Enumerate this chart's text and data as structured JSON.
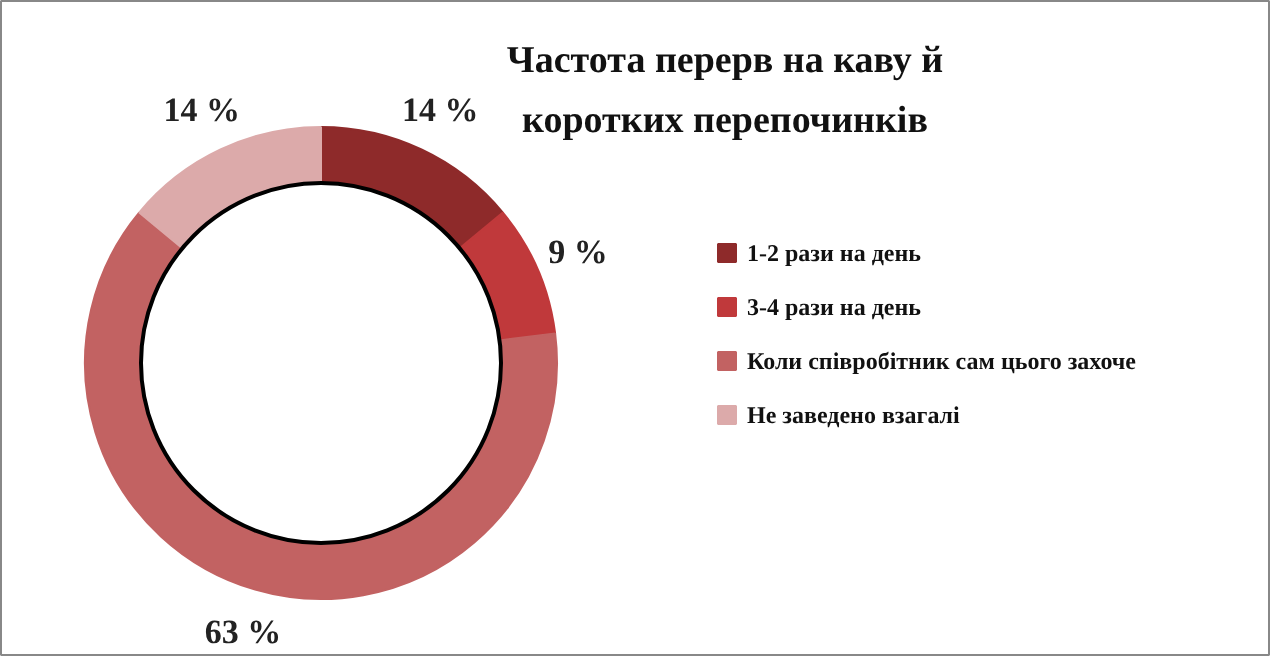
{
  "chart_data": {
    "type": "donut",
    "title": "Частота перерв на каву й коротких перепочинків",
    "categories": [
      "1-2 рази на день",
      "3-4 рази на день",
      "Коли співробітник сам цього захоче",
      "Не заведено взагалі"
    ],
    "values": [
      14,
      9,
      63,
      14
    ],
    "colors": [
      "#8e2a2a",
      "#c0393b",
      "#c26262",
      "#dcaaaa"
    ],
    "value_labels": [
      "14 %",
      "9 %",
      "63 %",
      "14 %"
    ],
    "legend": "right"
  }
}
